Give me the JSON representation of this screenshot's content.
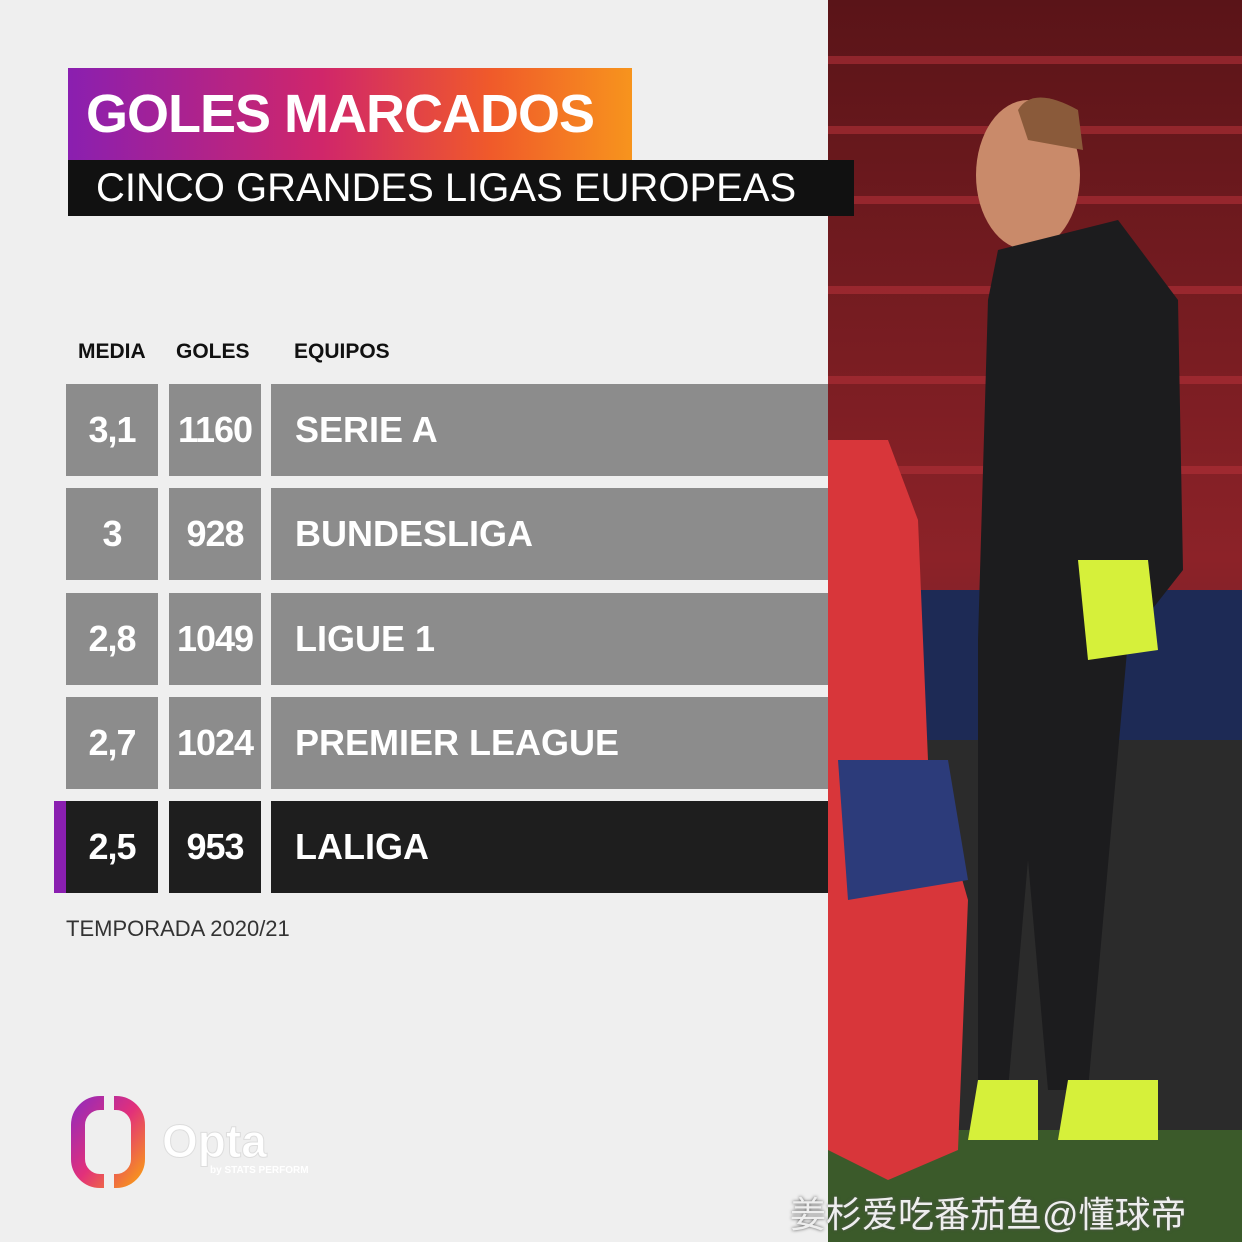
{
  "header": {
    "title": "GOLES MARCADOS",
    "subtitle": "CINCO GRANDES LIGAS EUROPEAS"
  },
  "table": {
    "columns": [
      "MEDIA",
      "GOLES",
      "EQUIPOS"
    ],
    "rows": [
      [
        "3,1",
        1160,
        "SERIE A"
      ],
      [
        "3",
        928,
        "BUNDESLIGA"
      ],
      [
        "2,8",
        1049,
        "LIGUE 1"
      ],
      [
        "2,7",
        1024,
        "PREMIER LEAGUE"
      ],
      [
        "2,5",
        953,
        "LALIGA"
      ]
    ]
  },
  "footnote": "TEMPORADA 2020/21",
  "logo": {
    "name": "Opta",
    "tagline": "by STATS PERFORM"
  },
  "watermark": "姜杉爱吃番茄鱼@懂球帝"
}
